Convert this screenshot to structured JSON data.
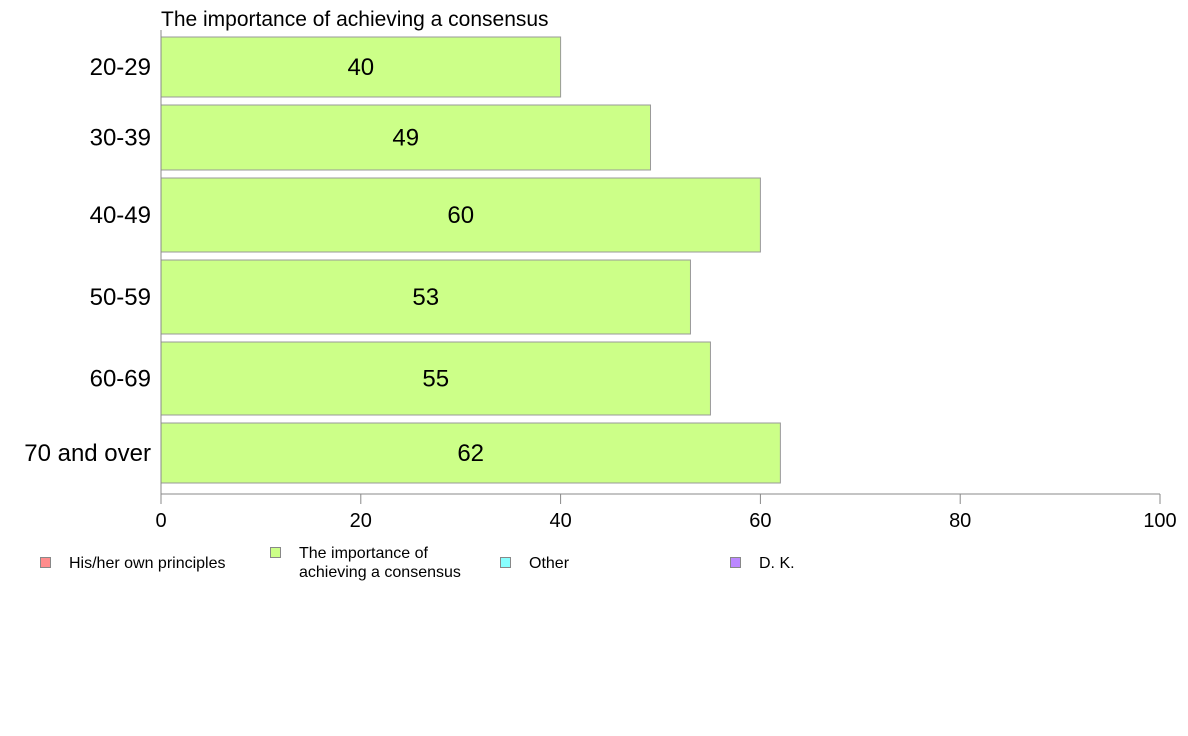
{
  "chart_data": {
    "type": "bar",
    "orientation": "horizontal",
    "title": "The importance of achieving a consensus",
    "categories": [
      "20-29",
      "30-39",
      "40-49",
      "50-59",
      "60-69",
      "70 and over"
    ],
    "series": [
      {
        "name": "The importance of achieving a consensus",
        "values": [
          40,
          49,
          60,
          53,
          55,
          62
        ],
        "color": "#ccff88"
      }
    ],
    "data_labels": [
      "40",
      "49",
      "60",
      "53",
      "55",
      "62"
    ],
    "xlim": [
      0,
      100
    ],
    "xticks": [
      0,
      20,
      40,
      60,
      80,
      100
    ],
    "xtick_labels": [
      "0",
      "20",
      "40",
      "60",
      "80",
      "100"
    ],
    "grid": false,
    "legend_position": "bottom",
    "legend": [
      {
        "label": "His/her own principles",
        "color": "#ff8c8c"
      },
      {
        "label": "The importance of\nachieving a consensus",
        "color": "#ccff88"
      },
      {
        "label": "Other",
        "color": "#88ffff"
      },
      {
        "label": "D. K.",
        "color": "#bb88ff"
      }
    ]
  }
}
